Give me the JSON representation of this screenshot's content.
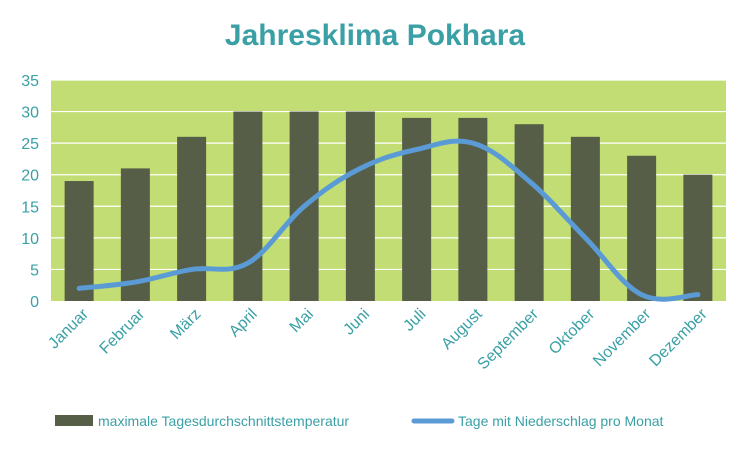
{
  "chart_data": {
    "type": "bar",
    "title": "Jahresklima Pokhara",
    "xlabel": "",
    "ylabel": "",
    "categories": [
      "Januar",
      "Februar",
      "März",
      "April",
      "Mai",
      "Juni",
      "Juli",
      "August",
      "September",
      "Oktober",
      "November",
      "Dezember"
    ],
    "ylim": [
      0,
      35
    ],
    "yticks": [
      0,
      5,
      10,
      15,
      20,
      25,
      30,
      35
    ],
    "grid": true,
    "legend_position": "bottom",
    "series": [
      {
        "name": "maximale Tagesdurchschnittstemperatur",
        "type": "bar",
        "color": "#565e48",
        "values": [
          19,
          21,
          26,
          30,
          30,
          30,
          29,
          29,
          28,
          26,
          23,
          20
        ]
      },
      {
        "name": "Tage mit Niederschlag pro Monat",
        "type": "line",
        "color": "#5b9bd5",
        "values": [
          2,
          3,
          5,
          6,
          15,
          21,
          24,
          25,
          19,
          10,
          1,
          1
        ]
      }
    ],
    "colors": {
      "plot_background": "#c2dd73",
      "gridline": "#ffffff",
      "text": "#3aa0a6"
    }
  }
}
